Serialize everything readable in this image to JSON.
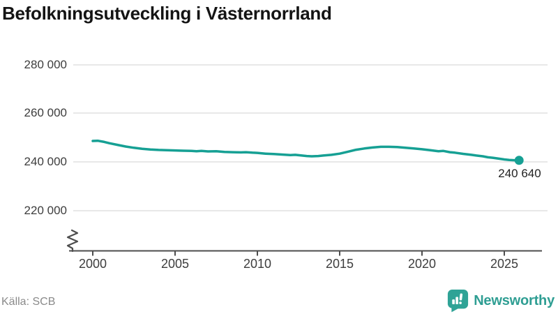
{
  "chart_data": {
    "type": "line",
    "title": "Befolkningsutveckling i Västernorrland",
    "xlabel": "",
    "ylabel": "",
    "grid": "horizontal",
    "axis_break": true,
    "line_color": "#16a094",
    "y_tick_labels": [
      "280 000",
      "260 000",
      "240 000",
      "220 000"
    ],
    "y_tick_values": [
      280000,
      260000,
      240000,
      220000
    ],
    "x_tick_labels": [
      "2000",
      "2005",
      "2010",
      "2015",
      "2020",
      "2025"
    ],
    "x_tick_values": [
      2000,
      2005,
      2010,
      2015,
      2020,
      2025
    ],
    "xlim": [
      1999,
      2027.5
    ],
    "ylim": [
      214000,
      286000
    ],
    "end_label": "240 640",
    "end_value": 240640,
    "series": [
      {
        "name": "Befolkning i Västernorrland",
        "points": [
          [
            2000.0,
            248600
          ],
          [
            2000.3,
            248700
          ],
          [
            2000.7,
            248200
          ],
          [
            2001.0,
            247700
          ],
          [
            2001.5,
            247000
          ],
          [
            2002.0,
            246300
          ],
          [
            2002.5,
            245800
          ],
          [
            2003.0,
            245400
          ],
          [
            2003.5,
            245100
          ],
          [
            2004.0,
            244900
          ],
          [
            2004.5,
            244800
          ],
          [
            2005.0,
            244700
          ],
          [
            2005.5,
            244600
          ],
          [
            2006.0,
            244500
          ],
          [
            2006.3,
            244400
          ],
          [
            2006.6,
            244500
          ],
          [
            2007.0,
            244300
          ],
          [
            2007.5,
            244400
          ],
          [
            2008.0,
            244100
          ],
          [
            2008.5,
            244000
          ],
          [
            2009.0,
            243900
          ],
          [
            2009.3,
            244000
          ],
          [
            2009.7,
            243800
          ],
          [
            2010.0,
            243700
          ],
          [
            2010.5,
            243400
          ],
          [
            2011.0,
            243200
          ],
          [
            2011.5,
            243000
          ],
          [
            2012.0,
            242800
          ],
          [
            2012.3,
            242900
          ],
          [
            2012.7,
            242600
          ],
          [
            2013.0,
            242400
          ],
          [
            2013.3,
            242300
          ],
          [
            2013.7,
            242400
          ],
          [
            2014.0,
            242600
          ],
          [
            2014.5,
            242900
          ],
          [
            2015.0,
            243400
          ],
          [
            2015.5,
            244200
          ],
          [
            2016.0,
            245000
          ],
          [
            2016.5,
            245500
          ],
          [
            2017.0,
            245900
          ],
          [
            2017.5,
            246200
          ],
          [
            2018.0,
            246200
          ],
          [
            2018.5,
            246100
          ],
          [
            2019.0,
            245800
          ],
          [
            2019.5,
            245500
          ],
          [
            2020.0,
            245200
          ],
          [
            2020.5,
            244800
          ],
          [
            2021.0,
            244400
          ],
          [
            2021.3,
            244500
          ],
          [
            2021.7,
            244000
          ],
          [
            2022.0,
            243800
          ],
          [
            2022.5,
            243300
          ],
          [
            2023.0,
            242900
          ],
          [
            2023.3,
            242600
          ],
          [
            2023.7,
            242300
          ],
          [
            2024.0,
            241900
          ],
          [
            2024.3,
            241700
          ],
          [
            2024.6,
            241400
          ],
          [
            2025.0,
            241000
          ],
          [
            2025.3,
            240800
          ],
          [
            2025.6,
            240700
          ],
          [
            2025.9,
            240640
          ]
        ]
      }
    ]
  },
  "footer": {
    "source": "Källa: SCB",
    "logo_text": "Newsworthy",
    "logo_color": "#2f9e93"
  }
}
